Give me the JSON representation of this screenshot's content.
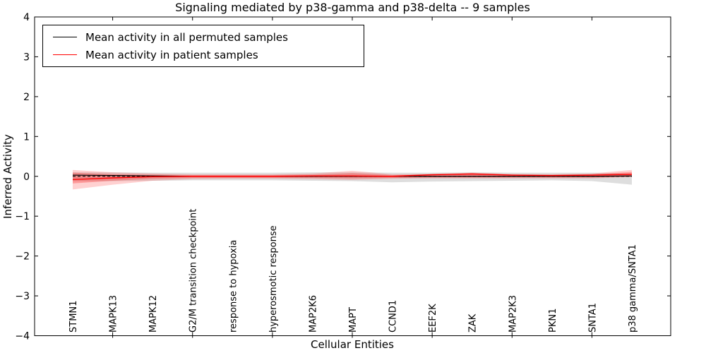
{
  "chart_data": {
    "type": "line",
    "title": "Signaling mediated by p38-gamma and p38-delta -- 9 samples",
    "xlabel": "Cellular Entities",
    "ylabel": "Inferred Activity",
    "ylim": [
      -4,
      4
    ],
    "ytick_values": [
      4,
      3,
      2,
      1,
      0,
      -1,
      -2,
      -3,
      -4
    ],
    "ytick_labels": [
      "4",
      "3",
      "2",
      "1",
      "0",
      "−1",
      "−2",
      "−3",
      "−4"
    ],
    "grid": false,
    "categories": [
      "STMN1",
      "MAPK13",
      "MAPK12",
      "G2/M transition checkpoint",
      "response to hypoxia",
      "hyperosmotic response",
      "MAP2K6",
      "MAPT",
      "CCND1",
      "EEF2K",
      "ZAK",
      "MAP2K3",
      "PKN1",
      "SNTA1",
      "p38 gamma/SNTA1"
    ],
    "legend": {
      "position": "upper left",
      "entries": [
        {
          "label": "Mean activity in all permuted samples",
          "color": "#000000"
        },
        {
          "label": "Mean activity in patient samples",
          "color": "#ff0000"
        }
      ]
    },
    "zero_reference_line": {
      "y": 0,
      "style": "dashed",
      "color": "#000000"
    },
    "series": [
      {
        "name": "Mean activity in all permuted samples",
        "color": "#000000",
        "style": "solid",
        "values": [
          0.03,
          0.02,
          0.01,
          0.0,
          0.0,
          0.0,
          0.0,
          0.0,
          0.0,
          0.0,
          0.0,
          0.0,
          0.0,
          0.0,
          0.01
        ]
      },
      {
        "name": "Mean activity in patient samples",
        "color": "#ff0000",
        "style": "solid",
        "values": [
          -0.08,
          -0.04,
          -0.01,
          0.0,
          0.0,
          0.0,
          0.01,
          0.01,
          0.0,
          0.04,
          0.06,
          0.03,
          0.02,
          0.03,
          0.05
        ]
      }
    ],
    "bands": [
      {
        "name": "permuted-samples-range",
        "color": "#000000",
        "opacity": 0.13,
        "upper": [
          0.1,
          0.1,
          0.09,
          0.09,
          0.09,
          0.09,
          0.1,
          0.1,
          0.09,
          0.09,
          0.1,
          0.09,
          0.09,
          0.09,
          0.07
        ],
        "lower": [
          -0.12,
          -0.12,
          -0.11,
          -0.1,
          -0.1,
          -0.1,
          -0.11,
          -0.12,
          -0.15,
          -0.13,
          -0.12,
          -0.11,
          -0.1,
          -0.12,
          -0.21
        ]
      },
      {
        "name": "patient-samples-range-outer",
        "color": "#ff0000",
        "opacity": 0.18,
        "upper": [
          0.16,
          0.1,
          0.07,
          0.05,
          0.05,
          0.05,
          0.07,
          0.14,
          0.05,
          0.06,
          0.09,
          0.06,
          0.05,
          0.07,
          0.16
        ],
        "lower": [
          -0.33,
          -0.21,
          -0.11,
          -0.07,
          -0.06,
          -0.06,
          -0.07,
          -0.09,
          -0.06,
          -0.05,
          -0.05,
          -0.05,
          -0.05,
          -0.05,
          -0.02
        ]
      },
      {
        "name": "patient-samples-range-inner",
        "color": "#ff0000",
        "opacity": 0.25,
        "upper": [
          0.09,
          0.05,
          0.04,
          0.03,
          0.03,
          0.03,
          0.04,
          0.08,
          0.03,
          0.04,
          0.06,
          0.04,
          0.03,
          0.05,
          0.11
        ],
        "lower": [
          -0.18,
          -0.11,
          -0.06,
          -0.04,
          -0.04,
          -0.04,
          -0.04,
          -0.05,
          -0.04,
          -0.03,
          -0.03,
          -0.03,
          -0.03,
          -0.03,
          -0.01
        ]
      }
    ]
  }
}
